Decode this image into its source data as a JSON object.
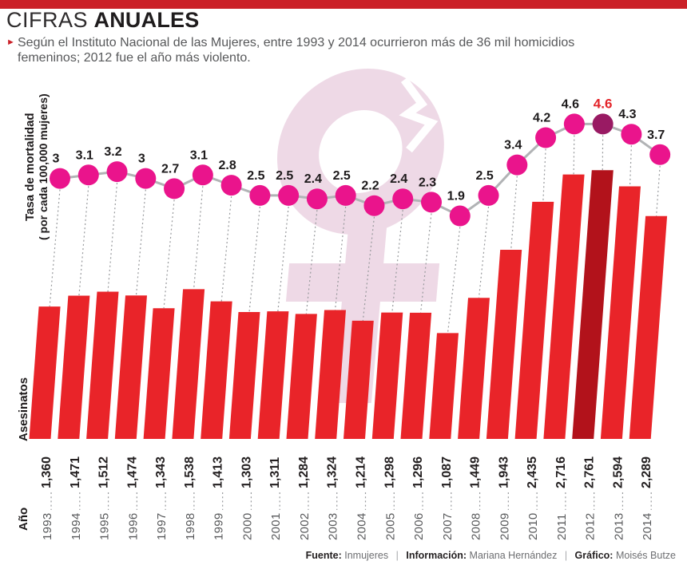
{
  "header": {
    "title_light": "CIFRAS",
    "title_bold": "ANUALES",
    "bullet": "►",
    "subtitle_line1": "Según el Instituto Nacional de las Mujeres, entre 1993 y 2014 ocurrieron más de 36 mil homicidios",
    "subtitle_line2": "femeninos; 2012 fue el año más violento."
  },
  "axis": {
    "rate_label_line1": "Tasa de mortalidad",
    "rate_label_line2": "( por cada 100,000 mujeres)",
    "bars_label": "Asesinatos",
    "year_label": "Año"
  },
  "footer": {
    "source_label": "Fuente:",
    "source_value": "Inmujeres",
    "separator": "|",
    "info_label": "Información:",
    "info_value": "Mariana Hernández",
    "credit_label": "Gráfico:",
    "credit_value": "Moisés Butze"
  },
  "colors": {
    "top_bar": "#cb2128",
    "bar": "#e92429",
    "bar_highlight": "#b2121b",
    "dot": "#ea148c",
    "dot_highlight": "#991a63",
    "rate_label": "#1d1a1b",
    "rate_label_highlight": "#e4252b",
    "trend_line": "#b1b3b5",
    "dashed_line": "#97999c",
    "bar_value_text": "#231f20",
    "year_text": "#595a5c",
    "symbol_pink": "#eed9e6"
  },
  "chart_data": {
    "type": "combo (line + bar)",
    "title": "CIFRAS ANUALES",
    "xlabel": "Año",
    "x": [
      1993,
      1994,
      1995,
      1996,
      1997,
      1998,
      1999,
      2000,
      2001,
      2002,
      2003,
      2004,
      2005,
      2006,
      2007,
      2008,
      2009,
      2010,
      2011,
      2012,
      2013,
      2014
    ],
    "series": [
      {
        "name": "Tasa de mortalidad ( por cada 100,000 mujeres)",
        "type": "line",
        "values": [
          3,
          3.1,
          3.2,
          3,
          2.7,
          3.1,
          2.8,
          2.5,
          2.5,
          2.4,
          2.5,
          2.2,
          2.4,
          2.3,
          1.9,
          2.5,
          3.4,
          4.2,
          4.6,
          4.6,
          4.3,
          3.7
        ]
      },
      {
        "name": "Asesinatos",
        "type": "bar",
        "values": [
          1360,
          1471,
          1512,
          1474,
          1343,
          1538,
          1413,
          1303,
          1311,
          1284,
          1324,
          1214,
          1298,
          1296,
          1087,
          1449,
          1943,
          2435,
          2716,
          2761,
          2594,
          2289
        ],
        "values_display": [
          "1,360",
          "1,471",
          "1,512",
          "1,474",
          "1,343",
          "1,538",
          "1,413",
          "1,303",
          "1,311",
          "1,284",
          "1,324",
          "1,214",
          "1,298",
          "1,296",
          "1,087",
          "1,449",
          "1,943",
          "2,435",
          "2,716",
          "2,761",
          "2,594",
          "2,289"
        ]
      }
    ],
    "highlight_index": 19,
    "highlight_year": 2012,
    "legend": "none",
    "grid": "dashed vertical droplines per year",
    "background_motif": "pale pink cracked female (Venus) symbol"
  }
}
